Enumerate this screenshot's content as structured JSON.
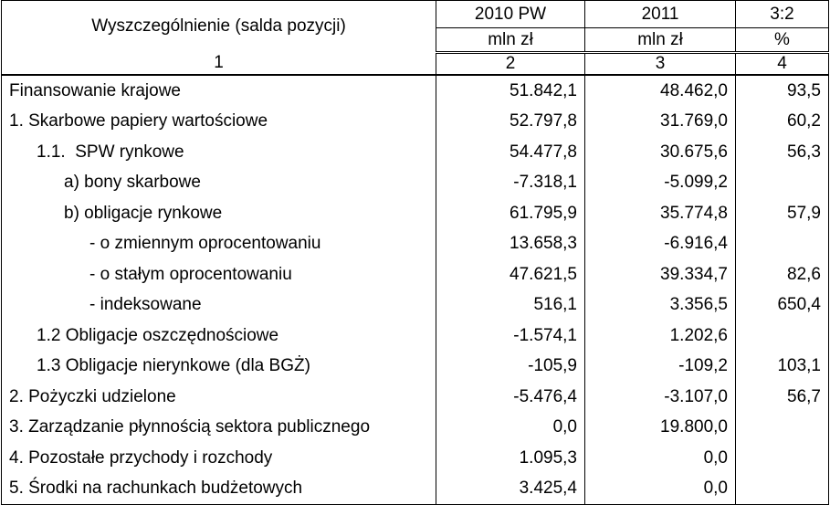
{
  "table": {
    "header": {
      "label": "Wyszczególnienie (salda pozycji)",
      "columns": [
        {
          "period": "2010 PW",
          "unit": "mln zł"
        },
        {
          "period": "2011",
          "unit": "mln zł"
        },
        {
          "period": "3:2",
          "unit": "%"
        }
      ],
      "numbers": [
        "1",
        "2",
        "3",
        "4"
      ]
    },
    "rows": [
      {
        "label": "Finansowanie krajowe",
        "values": [
          "51.842,1",
          "48.462,0",
          "93,5"
        ]
      },
      {
        "label": "1. Skarbowe papiery wartościowe",
        "values": [
          "52.797,8",
          "31.769,0",
          "60,2"
        ]
      },
      {
        "label": "1.1.  SPW rynkowe",
        "values": [
          "54.477,8",
          "30.675,6",
          "56,3"
        ]
      },
      {
        "label": "a) bony skarbowe",
        "values": [
          "-7.318,1",
          "-5.099,2"
        ]
      },
      {
        "label": "b) obligacje rynkowe",
        "values": [
          "61.795,9",
          "35.774,8",
          "57,9"
        ]
      },
      {
        "label": "- o zmiennym oprocentowaniu",
        "values": [
          "13.658,3",
          "-6.916,4"
        ]
      },
      {
        "label": "- o stałym oprocentowaniu",
        "values": [
          "47.621,5",
          "39.334,7",
          "82,6"
        ]
      },
      {
        "label": "- indeksowane",
        "values": [
          "516,1",
          "3.356,5",
          "650,4"
        ]
      },
      {
        "label": "1.2 Obligacje oszczędnościowe",
        "values": [
          "-1.574,1",
          "1.202,6"
        ]
      },
      {
        "label": "1.3 Obligacje nierynkowe (dla BGŻ)",
        "values": [
          "-105,9",
          "-109,2",
          "103,1"
        ]
      },
      {
        "label": "2. Pożyczki udzielone",
        "values": [
          "-5.476,4",
          "-3.107,0",
          "56,7"
        ]
      },
      {
        "label": "3. Zarządzanie płynnością sektora publicznego",
        "values": [
          "0,0",
          "19.800,0"
        ]
      },
      {
        "label": "4. Pozostałe przychody i rozchody",
        "values": [
          "1.095,3",
          "0,0"
        ]
      },
      {
        "label": "5. Środki na rachunkach budżetowych",
        "values": [
          "3.425,4",
          "0,0"
        ]
      }
    ]
  }
}
